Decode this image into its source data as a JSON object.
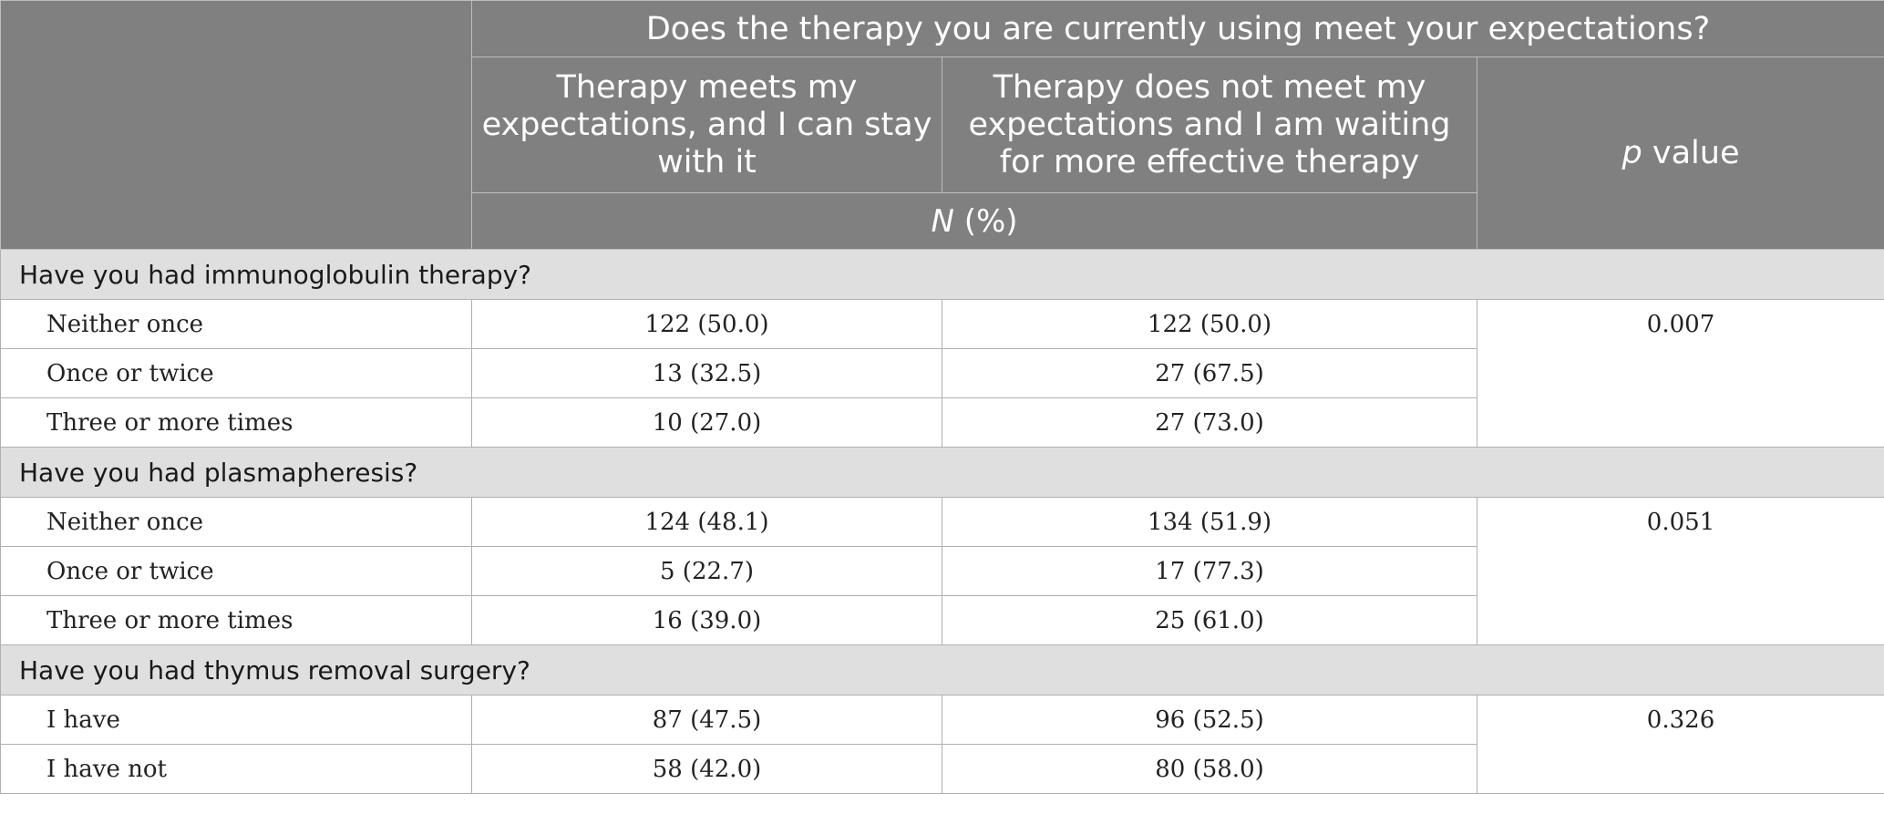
{
  "header": {
    "question": "Does the therapy you are currently using meet your expectations?",
    "col_meets": "Therapy meets my expectations, and I can stay with it",
    "col_not_meets": "Therapy does not meet my expectations and I am waiting for more effective therapy",
    "p_italic": "p",
    "p_rest": " value",
    "n_pct_italic": "N",
    "n_pct_rest": " (%)"
  },
  "sections": [
    {
      "title": "Have you had immunoglobulin therapy?",
      "p_value": "0.007",
      "rows": [
        {
          "label": "Neither once",
          "meets": "122 (50.0)",
          "not_meets": "122 (50.0)"
        },
        {
          "label": "Once or twice",
          "meets": "13 (32.5)",
          "not_meets": "27 (67.5)"
        },
        {
          "label": "Three or more times",
          "meets": "10 (27.0)",
          "not_meets": "27 (73.0)"
        }
      ]
    },
    {
      "title": "Have you had plasmapheresis?",
      "p_value": "0.051",
      "rows": [
        {
          "label": "Neither once",
          "meets": "124 (48.1)",
          "not_meets": "134 (51.9)"
        },
        {
          "label": "Once or twice",
          "meets": "5 (22.7)",
          "not_meets": "17 (77.3)"
        },
        {
          "label": "Three or more times",
          "meets": "16 (39.0)",
          "not_meets": "25 (61.0)"
        }
      ]
    },
    {
      "title": "Have you had thymus removal surgery?",
      "p_value": "0.326",
      "rows": [
        {
          "label": "I have",
          "meets": "87 (47.5)",
          "not_meets": "96 (52.5)"
        },
        {
          "label": "I have not",
          "meets": "58 (42.0)",
          "not_meets": "80 (58.0)"
        }
      ]
    }
  ]
}
